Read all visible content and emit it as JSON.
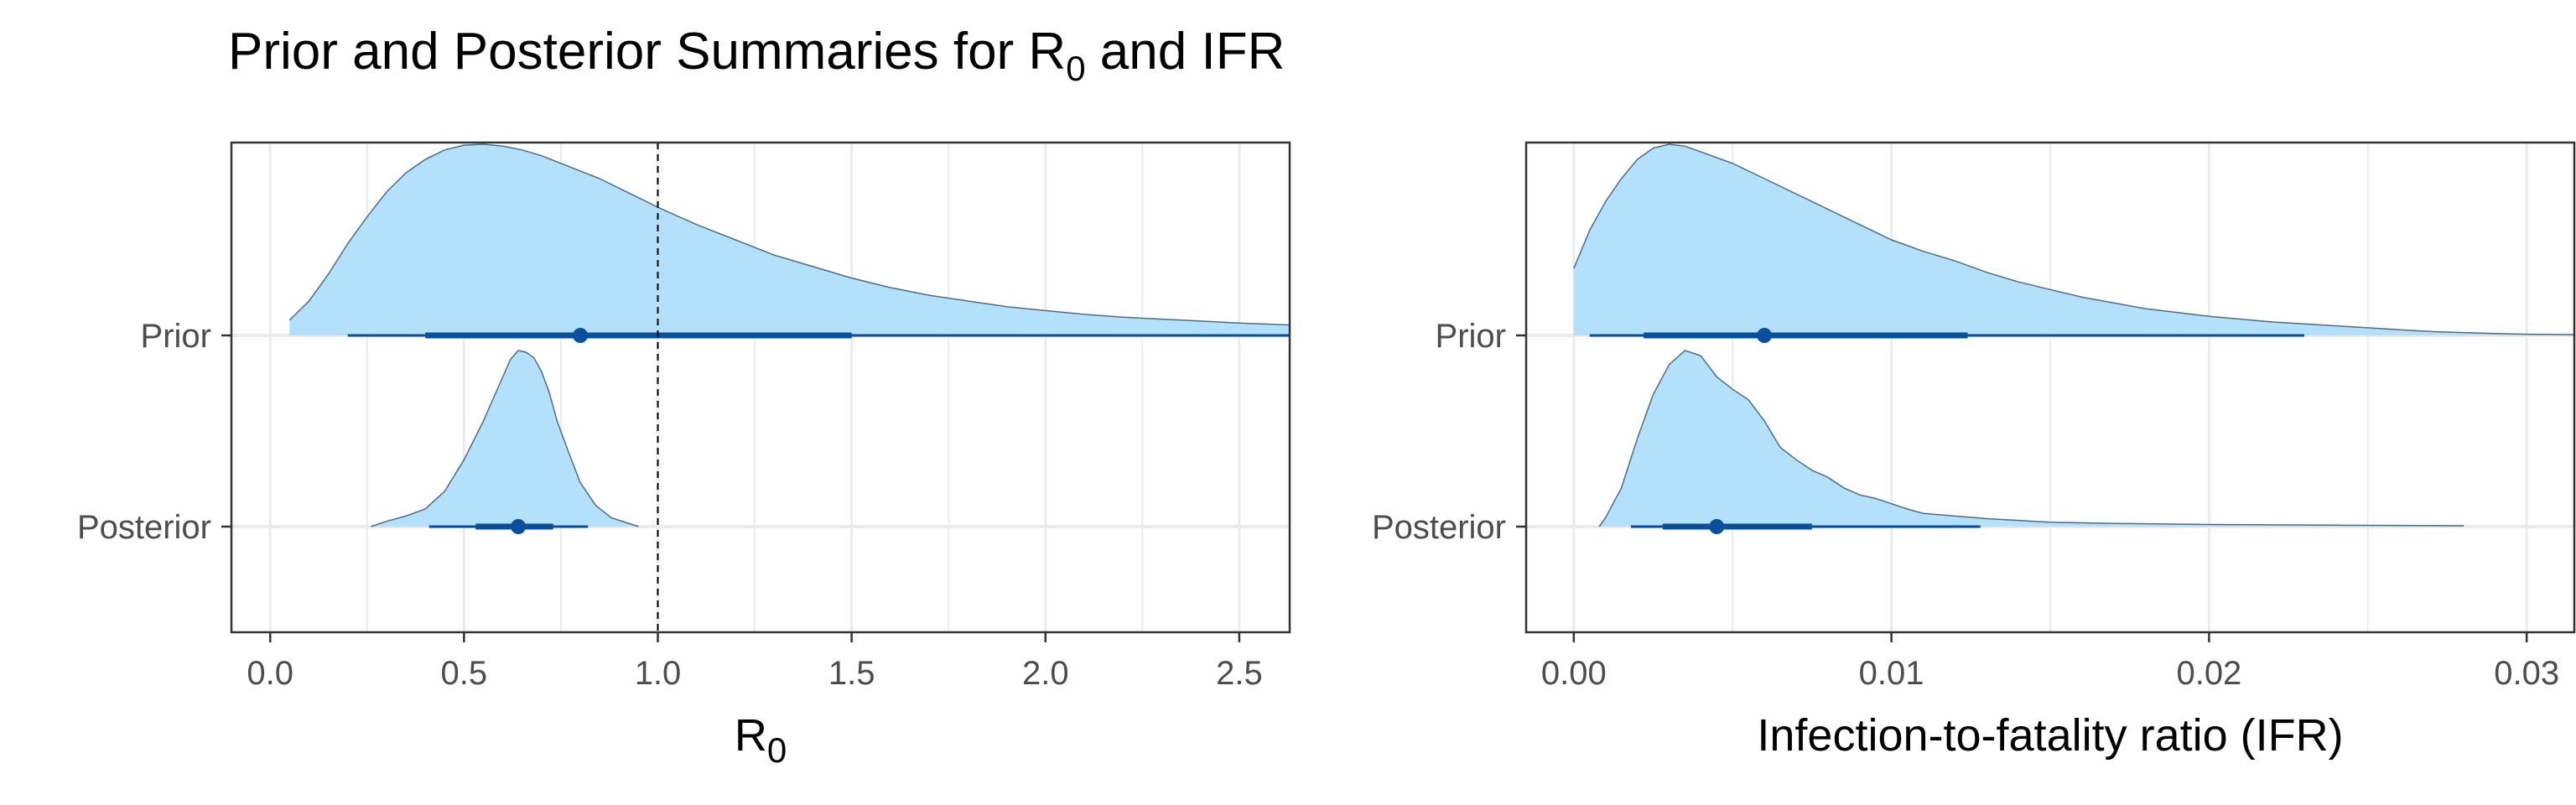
{
  "title": {
    "prefix": "Prior and Posterior Summaries for R",
    "sub": "0",
    "suffix": " and IFR"
  },
  "colors": {
    "density_fill": "#b3e0fb",
    "density_stroke": "#4a6f8a",
    "interval": "#0a4f9e",
    "grid": "#ebebeb",
    "panel_border": "#333333",
    "reference_line": "#000000"
  },
  "chart_data": [
    {
      "type": "density-interval",
      "panel": "R0",
      "xlabel": {
        "text": "R",
        "sub": "0"
      },
      "xlim": [
        -0.1,
        2.63
      ],
      "xticks": [
        0.0,
        0.5,
        1.0,
        1.5,
        2.0,
        2.5
      ],
      "xtick_labels": [
        "0.0",
        "0.5",
        "1.0",
        "1.5",
        "2.0",
        "2.5"
      ],
      "categories": [
        "Prior",
        "Posterior"
      ],
      "reference_line": {
        "x": 1.0,
        "style": "dashed"
      },
      "grid": true,
      "series": [
        {
          "category": "Prior",
          "point": 0.8,
          "interval_66": [
            0.4,
            1.5
          ],
          "interval_95": [
            0.2,
            2.63
          ],
          "density": [
            [
              0.05,
              0.08
            ],
            [
              0.1,
              0.18
            ],
            [
              0.15,
              0.32
            ],
            [
              0.2,
              0.48
            ],
            [
              0.25,
              0.62
            ],
            [
              0.3,
              0.75
            ],
            [
              0.35,
              0.85
            ],
            [
              0.4,
              0.92
            ],
            [
              0.45,
              0.97
            ],
            [
              0.5,
              0.995
            ],
            [
              0.55,
              1.0
            ],
            [
              0.6,
              0.99
            ],
            [
              0.65,
              0.97
            ],
            [
              0.7,
              0.94
            ],
            [
              0.75,
              0.9
            ],
            [
              0.8,
              0.86
            ],
            [
              0.85,
              0.82
            ],
            [
              0.9,
              0.77
            ],
            [
              0.95,
              0.72
            ],
            [
              1.0,
              0.67
            ],
            [
              1.1,
              0.58
            ],
            [
              1.2,
              0.5
            ],
            [
              1.3,
              0.42
            ],
            [
              1.4,
              0.36
            ],
            [
              1.5,
              0.3
            ],
            [
              1.6,
              0.25
            ],
            [
              1.7,
              0.21
            ],
            [
              1.8,
              0.18
            ],
            [
              1.9,
              0.15
            ],
            [
              2.0,
              0.13
            ],
            [
              2.1,
              0.11
            ],
            [
              2.2,
              0.095
            ],
            [
              2.3,
              0.085
            ],
            [
              2.4,
              0.075
            ],
            [
              2.5,
              0.065
            ],
            [
              2.63,
              0.055
            ]
          ]
        },
        {
          "category": "Posterior",
          "point": 0.64,
          "interval_66": [
            0.53,
            0.73
          ],
          "interval_95": [
            0.41,
            0.82
          ],
          "density": [
            [
              0.26,
              0.0
            ],
            [
              0.3,
              0.03
            ],
            [
              0.35,
              0.06
            ],
            [
              0.4,
              0.1
            ],
            [
              0.45,
              0.2
            ],
            [
              0.5,
              0.38
            ],
            [
              0.55,
              0.6
            ],
            [
              0.58,
              0.75
            ],
            [
              0.6,
              0.85
            ],
            [
              0.62,
              0.95
            ],
            [
              0.64,
              1.0
            ],
            [
              0.66,
              0.99
            ],
            [
              0.68,
              0.96
            ],
            [
              0.7,
              0.88
            ],
            [
              0.72,
              0.76
            ],
            [
              0.74,
              0.6
            ],
            [
              0.77,
              0.42
            ],
            [
              0.8,
              0.25
            ],
            [
              0.84,
              0.12
            ],
            [
              0.88,
              0.05
            ],
            [
              0.93,
              0.015
            ],
            [
              0.95,
              0.0
            ]
          ]
        }
      ]
    },
    {
      "type": "density-interval",
      "panel": "IFR",
      "xlabel": {
        "text": "Infection-to-fatality ratio (IFR)",
        "sub": ""
      },
      "xlim": [
        -0.0015,
        0.0315
      ],
      "xticks": [
        0.0,
        0.01,
        0.02,
        0.03
      ],
      "xtick_labels": [
        "0.00",
        "0.01",
        "0.02",
        "0.03"
      ],
      "categories": [
        "Prior",
        "Posterior"
      ],
      "grid": true,
      "series": [
        {
          "category": "Prior",
          "point": 0.006,
          "interval_66": [
            0.0022,
            0.0124
          ],
          "interval_95": [
            0.0005,
            0.023
          ],
          "density": [
            [
              0.0,
              0.35
            ],
            [
              0.0005,
              0.55
            ],
            [
              0.001,
              0.7
            ],
            [
              0.0015,
              0.82
            ],
            [
              0.002,
              0.92
            ],
            [
              0.0025,
              0.98
            ],
            [
              0.003,
              1.0
            ],
            [
              0.0035,
              0.99
            ],
            [
              0.004,
              0.96
            ],
            [
              0.005,
              0.9
            ],
            [
              0.006,
              0.82
            ],
            [
              0.007,
              0.74
            ],
            [
              0.008,
              0.66
            ],
            [
              0.009,
              0.58
            ],
            [
              0.01,
              0.5
            ],
            [
              0.011,
              0.44
            ],
            [
              0.012,
              0.39
            ],
            [
              0.013,
              0.33
            ],
            [
              0.014,
              0.28
            ],
            [
              0.015,
              0.24
            ],
            [
              0.016,
              0.2
            ],
            [
              0.017,
              0.17
            ],
            [
              0.018,
              0.14
            ],
            [
              0.019,
              0.12
            ],
            [
              0.02,
              0.1
            ],
            [
              0.021,
              0.085
            ],
            [
              0.022,
              0.07
            ],
            [
              0.023,
              0.06
            ],
            [
              0.024,
              0.05
            ],
            [
              0.025,
              0.04
            ],
            [
              0.026,
              0.03
            ],
            [
              0.027,
              0.02
            ],
            [
              0.028,
              0.015
            ],
            [
              0.029,
              0.01
            ],
            [
              0.03,
              0.006
            ],
            [
              0.0315,
              0.004
            ]
          ]
        },
        {
          "category": "Posterior",
          "point": 0.0045,
          "interval_66": [
            0.0028,
            0.0075
          ],
          "interval_95": [
            0.0018,
            0.0128
          ],
          "density": [
            [
              0.0008,
              0.0
            ],
            [
              0.001,
              0.05
            ],
            [
              0.0015,
              0.22
            ],
            [
              0.002,
              0.5
            ],
            [
              0.0025,
              0.75
            ],
            [
              0.003,
              0.92
            ],
            [
              0.0035,
              1.0
            ],
            [
              0.004,
              0.97
            ],
            [
              0.0045,
              0.85
            ],
            [
              0.005,
              0.78
            ],
            [
              0.0055,
              0.72
            ],
            [
              0.006,
              0.6
            ],
            [
              0.0065,
              0.45
            ],
            [
              0.007,
              0.38
            ],
            [
              0.0075,
              0.32
            ],
            [
              0.008,
              0.28
            ],
            [
              0.0085,
              0.22
            ],
            [
              0.009,
              0.18
            ],
            [
              0.0095,
              0.16
            ],
            [
              0.01,
              0.13
            ],
            [
              0.0105,
              0.1
            ],
            [
              0.011,
              0.075
            ],
            [
              0.012,
              0.06
            ],
            [
              0.013,
              0.045
            ],
            [
              0.014,
              0.035
            ],
            [
              0.015,
              0.025
            ],
            [
              0.017,
              0.018
            ],
            [
              0.02,
              0.012
            ],
            [
              0.024,
              0.008
            ],
            [
              0.028,
              0.005
            ],
            [
              0.028,
              0.0
            ]
          ]
        }
      ]
    }
  ]
}
